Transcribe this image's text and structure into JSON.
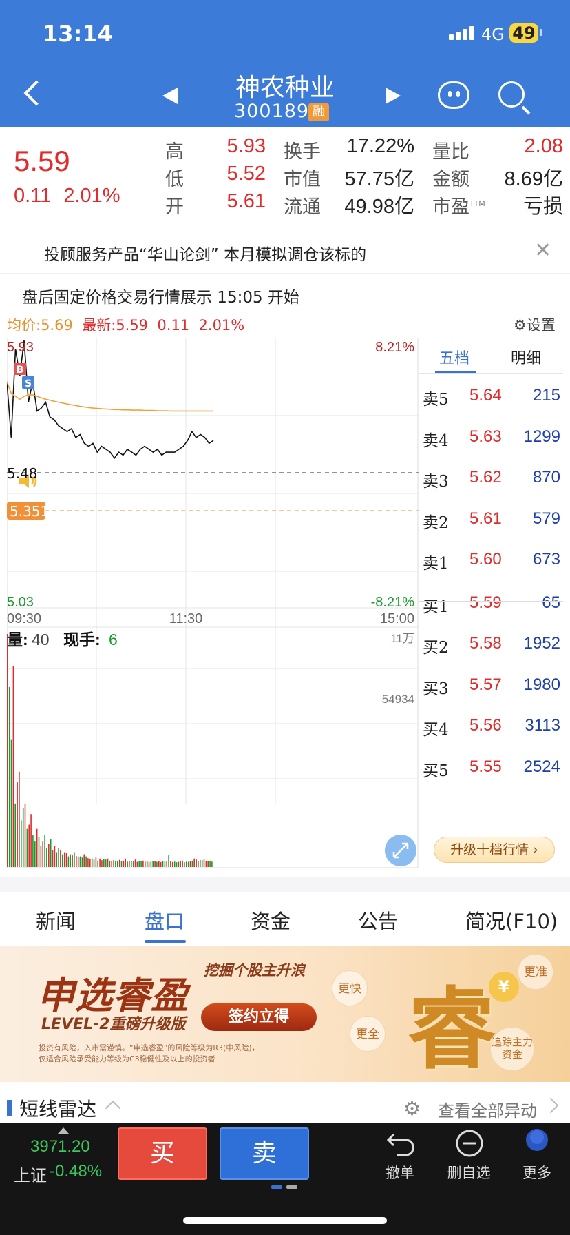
{
  "status_bar": {
    "time": "13:14",
    "network": "4G",
    "battery": "49"
  },
  "header": {
    "stock_name": "神农种业",
    "stock_code": "300189",
    "margin_badge": "融"
  },
  "quote": {
    "price": "5.59",
    "change": "0.11",
    "change_pct": "2.01%",
    "fields": [
      {
        "label": "高",
        "value": "5.93",
        "color": "red"
      },
      {
        "label": "低",
        "value": "5.52",
        "color": "red"
      },
      {
        "label": "开",
        "value": "5.61",
        "color": "red"
      },
      {
        "label": "换手",
        "value": "17.22%",
        "color": "black"
      },
      {
        "label": "市值",
        "value": "57.75亿",
        "color": "black"
      },
      {
        "label": "流通",
        "value": "49.98亿",
        "color": "black"
      },
      {
        "label": "量比",
        "value": "2.08",
        "color": "red"
      },
      {
        "label": "金额",
        "value": "8.69亿",
        "color": "black"
      },
      {
        "label": "市盈",
        "label_sup": "TTM",
        "value": "亏损",
        "color": "black"
      }
    ]
  },
  "notice": {
    "text": "投顾服务产品“华山论剑” 本月模拟调仓该标的"
  },
  "after_hours": {
    "text": "盘后固定价格交易行情展示 15:05 开始"
  },
  "chart_header": {
    "avg_label": "均价:5.69",
    "latest_label": "最新:5.59",
    "change": "0.11",
    "change_pct": "2.01%",
    "settings_label": "设置"
  },
  "chart_data": {
    "type": "line",
    "price_axis": {
      "top": "5.93",
      "bottom": "5.03",
      "top_pct": "8.21%",
      "bottom_pct": "-8.21%",
      "ylim": [
        5.03,
        5.93
      ]
    },
    "ref_lines": [
      {
        "label": "5.48",
        "value": 5.48
      },
      {
        "label": "5.351",
        "value": 5.351,
        "color": "#f0913a"
      }
    ],
    "x_ticks": [
      "09:30",
      "11:30",
      "15:00"
    ],
    "markers": [
      {
        "label": "B",
        "color": "#e05454"
      },
      {
        "label": "S",
        "color": "#4a86d6"
      }
    ],
    "series": [
      {
        "name": "price",
        "color": "#111111",
        "values": [
          5.79,
          5.6,
          5.9,
          5.81,
          5.93,
          5.72,
          5.79,
          5.69,
          5.7,
          5.72,
          5.67,
          5.66,
          5.64,
          5.63,
          5.62,
          5.63,
          5.6,
          5.61,
          5.58,
          5.57,
          5.58,
          5.55,
          5.57,
          5.56,
          5.55,
          5.53,
          5.55,
          5.54,
          5.56,
          5.55,
          5.54,
          5.56,
          5.57,
          5.56,
          5.55,
          5.56,
          5.54,
          5.55,
          5.55,
          5.55,
          5.56,
          5.57,
          5.59,
          5.62,
          5.6,
          5.61,
          5.6,
          5.58,
          5.59
        ]
      },
      {
        "name": "avg",
        "color": "#f0a23a",
        "values": [
          5.79,
          5.75,
          5.74,
          5.73,
          5.74,
          5.745,
          5.745,
          5.74,
          5.735,
          5.73,
          5.727,
          5.723,
          5.72,
          5.717,
          5.714,
          5.711,
          5.709,
          5.706,
          5.704,
          5.702,
          5.7,
          5.699,
          5.698,
          5.697,
          5.696,
          5.695,
          5.695,
          5.694,
          5.694,
          5.693,
          5.693,
          5.693,
          5.692,
          5.692,
          5.692,
          5.691,
          5.691,
          5.691,
          5.69,
          5.69,
          5.69,
          5.69,
          5.69,
          5.69,
          5.69,
          5.69,
          5.69,
          5.69,
          5.69
        ]
      }
    ],
    "volume": {
      "axis_top": "11万",
      "axis_mid": "54934",
      "vol_label": "量:",
      "vol_value": "40",
      "hand_label": "现手:",
      "hand_value": "6",
      "bars": [
        110000,
        85000,
        60000,
        95000,
        30000,
        40000,
        45000,
        22000,
        28000,
        30000,
        18000,
        20000,
        25000,
        15000,
        12000,
        18000,
        14000,
        10000,
        12000,
        15000,
        9000,
        11000,
        13000,
        8000,
        10000,
        7000,
        9000,
        8000,
        6000,
        7000,
        6500,
        5000,
        6000,
        5500,
        7000,
        5200,
        4800,
        5000,
        4500,
        6000,
        5000,
        4200,
        3800,
        4000,
        3500,
        4500,
        3000,
        4000,
        3200,
        3800,
        3500,
        4000,
        3000,
        2800,
        3200,
        3000,
        2600,
        3400,
        2800,
        3000,
        4000,
        2500,
        2800,
        3000,
        2600,
        3500,
        2400,
        2800,
        2600,
        3000,
        2500,
        2700,
        2300,
        2500,
        2800,
        2600,
        2400,
        2900,
        2300,
        2700,
        2500,
        2600,
        5500,
        2800,
        2300,
        2500,
        2200,
        2400,
        2700,
        3000,
        2200,
        2500,
        2400,
        2600,
        3000,
        4000,
        3500,
        2800,
        3300,
        3200,
        3500,
        2600,
        2700,
        3000,
        2500
      ]
    }
  },
  "order_book": {
    "tab_active": "五档",
    "tab_other": "明细",
    "asks": [
      {
        "label": "卖5",
        "price": "5.64",
        "vol": "215"
      },
      {
        "label": "卖4",
        "price": "5.63",
        "vol": "1299"
      },
      {
        "label": "卖3",
        "price": "5.62",
        "vol": "870"
      },
      {
        "label": "卖2",
        "price": "5.61",
        "vol": "579"
      },
      {
        "label": "卖1",
        "price": "5.60",
        "vol": "673"
      }
    ],
    "bids": [
      {
        "label": "买1",
        "price": "5.59",
        "vol": "65"
      },
      {
        "label": "买2",
        "price": "5.58",
        "vol": "1952"
      },
      {
        "label": "买3",
        "price": "5.57",
        "vol": "1980"
      },
      {
        "label": "买4",
        "price": "5.56",
        "vol": "3113"
      },
      {
        "label": "买5",
        "price": "5.55",
        "vol": "2524"
      }
    ],
    "upgrade_label": "升级十档行情 ›"
  },
  "tabs": [
    {
      "label": "新闻",
      "active": false
    },
    {
      "label": "盘口",
      "active": true
    },
    {
      "label": "资金",
      "active": false
    },
    {
      "label": "公告",
      "active": false
    },
    {
      "label": "简况(F10)",
      "active": false
    }
  ],
  "banner": {
    "title": "申选睿盈",
    "slogan": "挖掘个股主升浪",
    "subtitle": "LEVEL-2重磅升级版",
    "cta": "签约立得",
    "disclaimer_1": "投资有风险，入市需谨慎。“申选睿盈”的风险等级为R3(中风险)，",
    "disclaimer_2": "仅适合风险承受能力等级为C3稳健性及以上的投资者",
    "big_char": "睿",
    "bubbles": [
      "更快",
      "更准",
      "更全",
      "追踪主力资金"
    ],
    "coin": "¥"
  },
  "radar": {
    "title": "短线雷达",
    "link": "查看全部异动"
  },
  "dock": {
    "index_value": "3971.20",
    "index_name": "上证",
    "index_change": "-0.48%",
    "buy": "买",
    "sell": "卖",
    "cancel": "撤单",
    "remove_watch": "删自选",
    "more": "更多"
  }
}
